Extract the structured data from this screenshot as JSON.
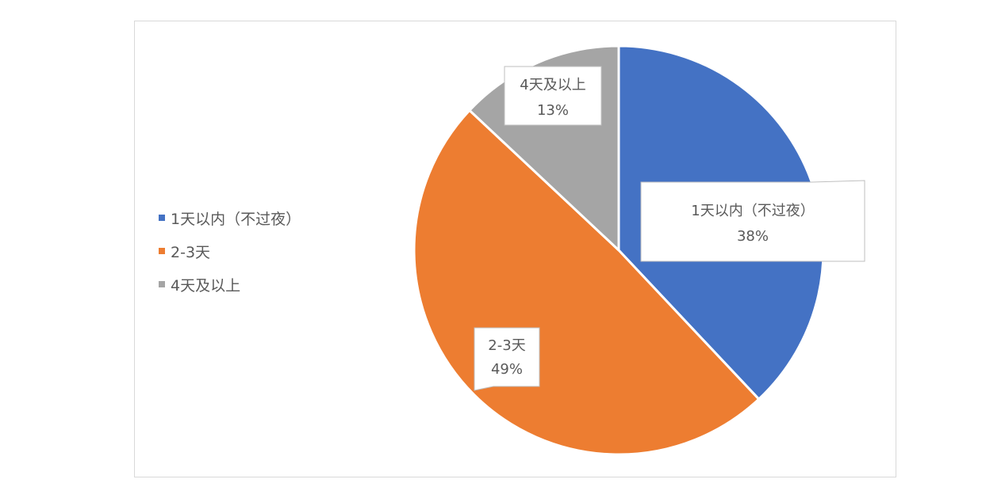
{
  "chart_data": {
    "type": "pie",
    "categories": [
      "1天以内（不过夜）",
      "2-3天",
      "4天及以上"
    ],
    "values": [
      38,
      49,
      13
    ],
    "labels": [
      "38%",
      "49%",
      "13%"
    ],
    "colors": [
      "#4472C4",
      "#ED7D31",
      "#A5A5A5"
    ],
    "legend_position": "left",
    "title": ""
  }
}
